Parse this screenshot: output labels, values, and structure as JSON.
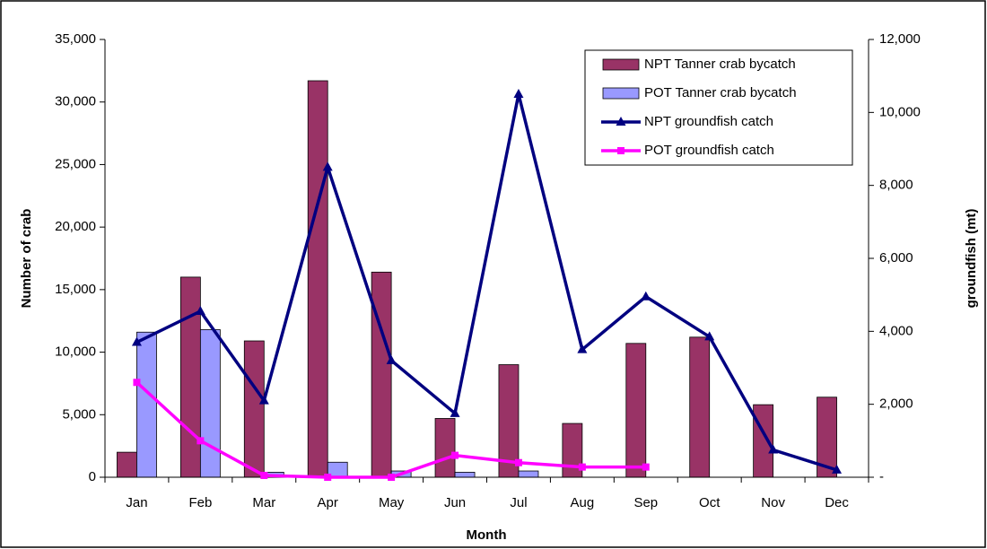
{
  "chart_data": {
    "type": "bar-line",
    "x_label": "Month",
    "y_label": "Number of crab",
    "y2_label": "groundfish (mt)",
    "categories": [
      "Jan",
      "Feb",
      "Mar",
      "Apr",
      "May",
      "Jun",
      "Jul",
      "Aug",
      "Sep",
      "Oct",
      "Nov",
      "Dec"
    ],
    "series": [
      {
        "name": "NPT Tanner crab bycatch",
        "kind": "bar",
        "color": "#993366",
        "values": [
          2000,
          16000,
          10900,
          31700,
          16400,
          4700,
          9000,
          4300,
          10700,
          11200,
          5800,
          6400
        ]
      },
      {
        "name": "POT Tanner crab bycatch",
        "kind": "bar",
        "color": "#9999ff",
        "values": [
          11600,
          11800,
          400,
          1200,
          500,
          400,
          500,
          null,
          null,
          null,
          null,
          null
        ]
      },
      {
        "name": "NPT groundfish catch",
        "kind": "line",
        "marker": "triangle",
        "axis": "y2",
        "color": "#000080",
        "values": [
          3700,
          4550,
          2100,
          8500,
          3200,
          1750,
          10500,
          3500,
          4950,
          3850,
          750,
          200
        ]
      },
      {
        "name": "POT groundfish catch",
        "kind": "line",
        "marker": "square",
        "axis": "y2",
        "color": "#ff00ff",
        "values": [
          2600,
          1000,
          50,
          0,
          0,
          600,
          400,
          280,
          280,
          null,
          null,
          null
        ]
      }
    ],
    "ylim": [
      0,
      35000
    ],
    "yticks": [
      0,
      {
        "value": 5000,
        "label": "5,000"
      },
      {
        "value": 10000,
        "label": "10,000"
      },
      {
        "value": 15000,
        "label": "15,000"
      },
      {
        "value": 20000,
        "label": "20,000"
      },
      {
        "value": 25000,
        "label": "25,000"
      },
      {
        "value": 30000,
        "label": "30,000"
      },
      {
        "value": 35000,
        "label": "35,000"
      }
    ],
    "y2lim": [
      0,
      12000
    ],
    "y2ticks": [
      {
        "value": 0,
        "label": "-"
      },
      {
        "value": 2000,
        "label": "2,000"
      },
      {
        "value": 4000,
        "label": "4,000"
      },
      {
        "value": 6000,
        "label": "6,000"
      },
      {
        "value": 8000,
        "label": "8,000"
      },
      {
        "value": 10000,
        "label": "10,000"
      },
      {
        "value": 12000,
        "label": "12,000"
      }
    ],
    "legend": "top-right"
  }
}
